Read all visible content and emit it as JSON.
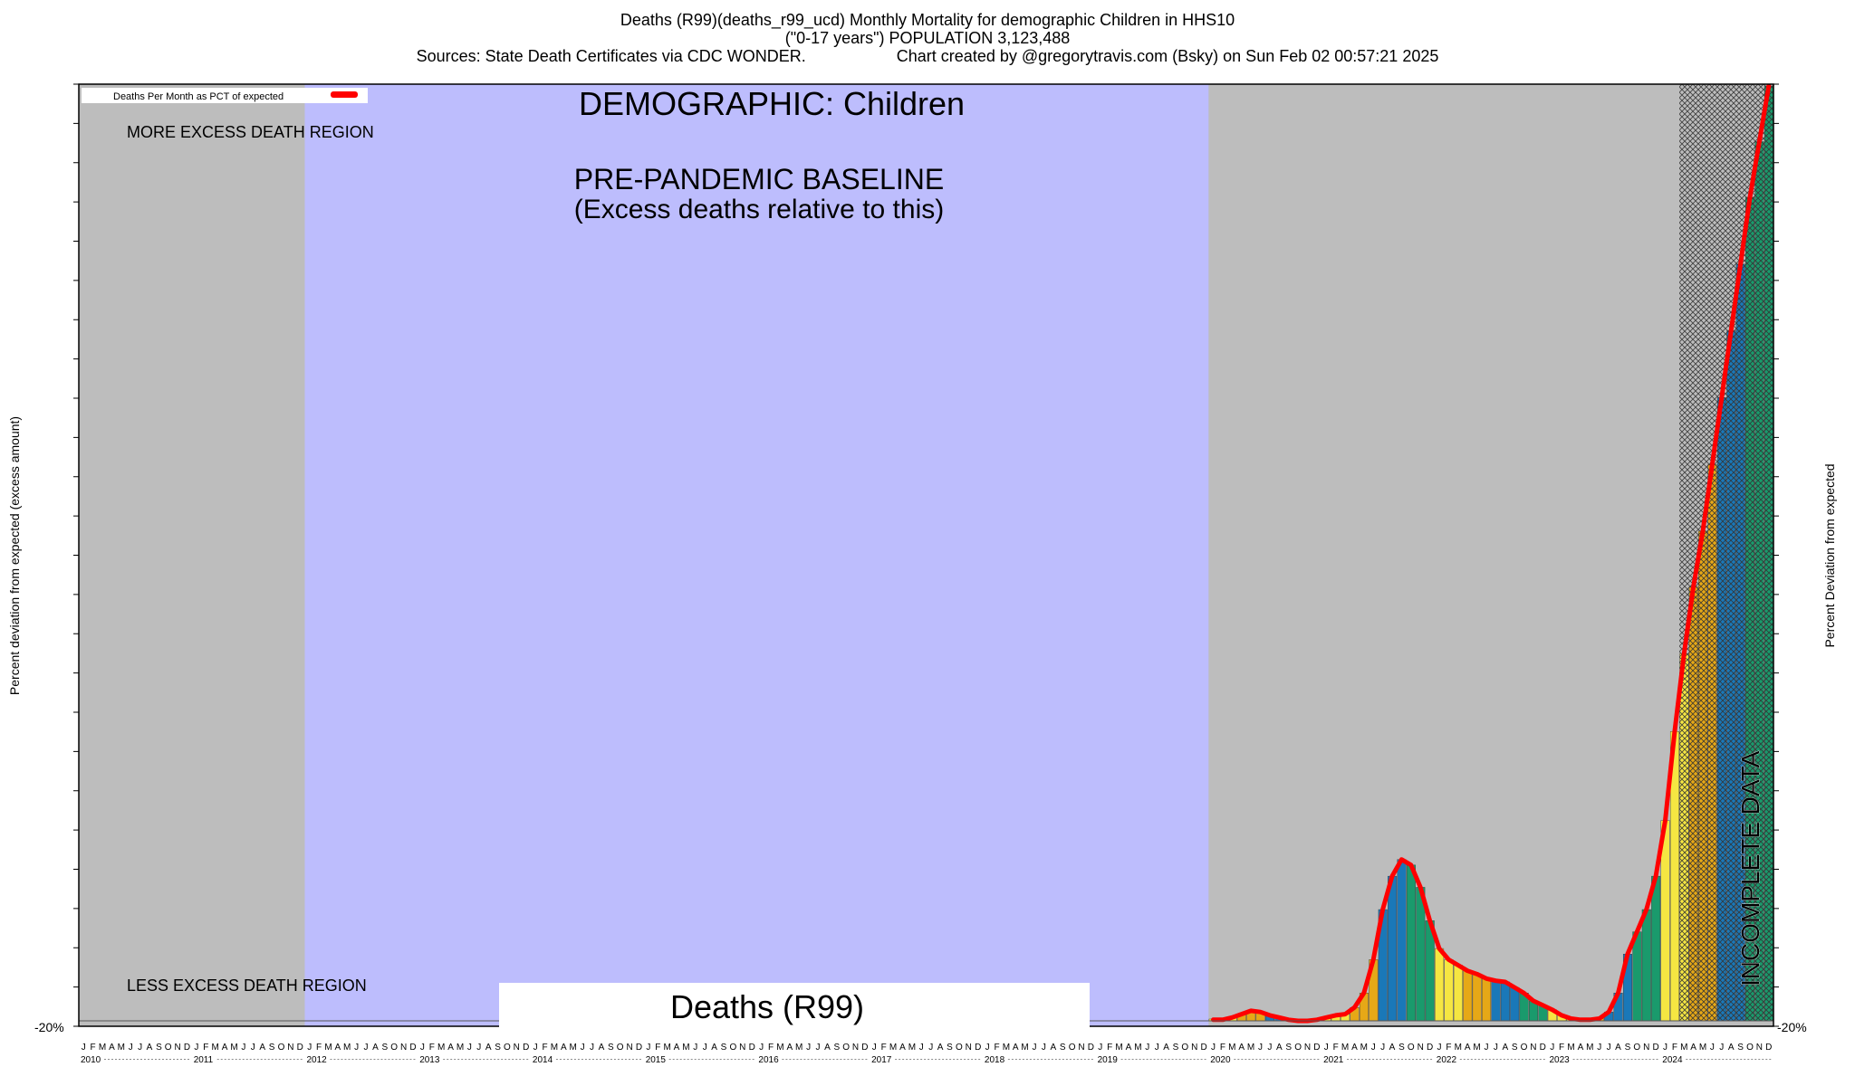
{
  "header": {
    "title_line1": "Deaths (R99)(deaths_r99_ucd) Monthly Mortality for demographic Children in HHS10",
    "title_line2": "(\"0-17 years\") POPULATION 3,123,488",
    "sources": "Sources: State Death Certificates via CDC WONDER.",
    "credit": "Chart created by @gregorytravis.com (Bsky) on Sun Feb 02 00:57:21 2025"
  },
  "colors": {
    "region_gray": "#bdbdbd",
    "baseline_fill": "#bdbdfd",
    "line": "#ff0000",
    "bar_palette": [
      "#f5e642",
      "#e6a817",
      "#1a78b8",
      "#1a9a6c"
    ]
  },
  "annotations": {
    "demographic": "DEMOGRAPHIC: Children",
    "baseline_line1": "PRE-PANDEMIC BASELINE",
    "baseline_line2": "(Excess deaths relative to this)",
    "more_region": "MORE EXCESS DEATH REGION",
    "less_region": "LESS EXCESS DEATH REGION",
    "incomplete": "INCOMPLETE DATA",
    "cause_box": "Deaths (R99)"
  },
  "chart_data": {
    "type": "bar",
    "title": "Deaths (R99)(deaths_r99_ucd) Monthly Mortality for demographic Children in HHS10",
    "ylabel_left": "Percent deviation from expected (excess amount)",
    "ylabel_right": "Percent Deviation from expected",
    "y_bottom_label": "-20%",
    "legend": {
      "label": "Deaths Per Month as PCT of expected",
      "placement": "top-left"
    },
    "month_letters": [
      "J",
      "F",
      "M",
      "A",
      "M",
      "J",
      "J",
      "A",
      "S",
      "O",
      "N",
      "D"
    ],
    "years": [
      "2010",
      "2011",
      "2012",
      "2013",
      "2014",
      "2015",
      "2016",
      "2017",
      "2018",
      "2019",
      "2020",
      "2021",
      "2022",
      "2023",
      "2024"
    ],
    "baseline_period": {
      "start": "2012-01",
      "end": "2019-12"
    },
    "incomplete_period": {
      "start": "2024-03",
      "end": "2024-12"
    },
    "series": [
      {
        "name": "Deaths Per Month as PCT of expected",
        "start": "2020-01",
        "values": [
          1,
          1,
          3,
          6,
          9,
          8,
          5,
          3,
          1,
          0,
          0,
          1,
          3,
          5,
          6,
          12,
          25,
          55,
          100,
          130,
          145,
          140,
          120,
          90,
          65,
          55,
          50,
          45,
          42,
          38,
          36,
          35,
          30,
          25,
          18,
          14,
          10,
          5,
          2,
          1,
          1,
          2,
          8,
          25,
          60,
          80,
          100,
          130,
          180,
          260,
          330,
          390,
          440,
          500,
          560,
          620,
          680,
          740,
          790,
          840
        ]
      }
    ]
  }
}
